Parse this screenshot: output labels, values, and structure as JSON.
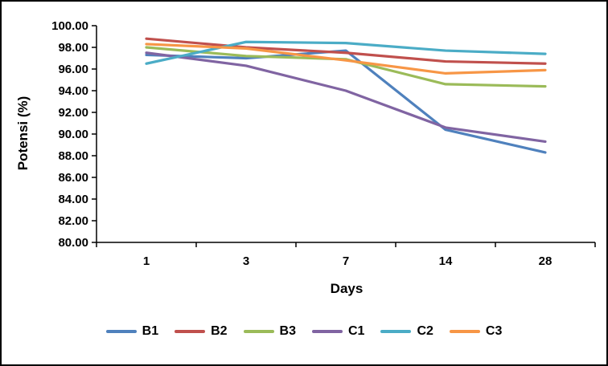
{
  "chart_data": {
    "type": "line",
    "x": [
      "1",
      "3",
      "7",
      "14",
      "28"
    ],
    "xlabel": "Days",
    "ylabel": "Potensi (%)",
    "ylim": [
      80,
      100
    ],
    "ytick_step": 2,
    "yticks": [
      "100.00",
      "98.00",
      "96.00",
      "94.00",
      "92.00",
      "90.00",
      "88.00",
      "86.00",
      "84.00",
      "82.00",
      "80.00"
    ],
    "grid": false,
    "legend_position": "bottom",
    "series": [
      {
        "name": "B1",
        "color": "#4F81BD",
        "values": [
          97.3,
          97.0,
          97.7,
          90.4,
          88.3
        ]
      },
      {
        "name": "B2",
        "color": "#C0504D",
        "values": [
          98.8,
          98.0,
          97.5,
          96.7,
          96.5
        ]
      },
      {
        "name": "B3",
        "color": "#9BBB59",
        "values": [
          98.0,
          97.2,
          96.9,
          94.6,
          94.4
        ]
      },
      {
        "name": "C1",
        "color": "#8064A2",
        "values": [
          97.5,
          96.3,
          94.0,
          90.6,
          89.3
        ]
      },
      {
        "name": "C2",
        "color": "#4BACC6",
        "values": [
          96.5,
          98.5,
          98.4,
          97.7,
          97.4
        ]
      },
      {
        "name": "C3",
        "color": "#F79646",
        "values": [
          98.3,
          97.9,
          96.8,
          95.6,
          95.9
        ]
      }
    ]
  }
}
